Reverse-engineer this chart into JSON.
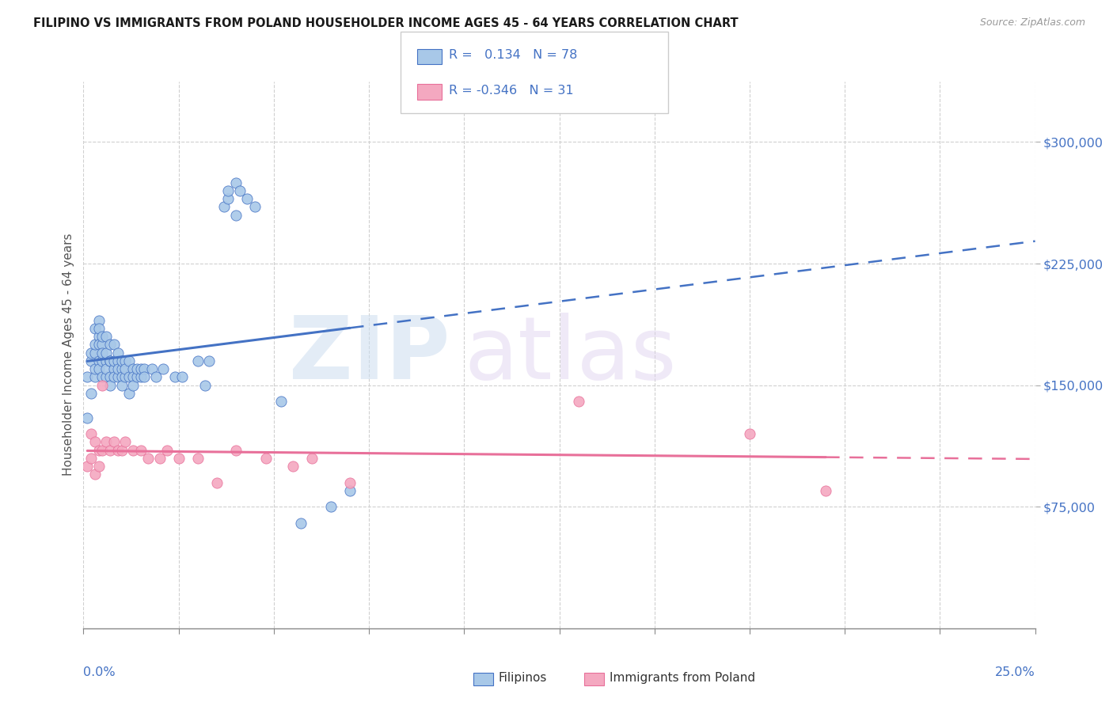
{
  "title": "FILIPINO VS IMMIGRANTS FROM POLAND HOUSEHOLDER INCOME AGES 45 - 64 YEARS CORRELATION CHART",
  "source": "Source: ZipAtlas.com",
  "ylabel": "Householder Income Ages 45 - 64 years",
  "xlim": [
    0.0,
    0.25
  ],
  "ylim": [
    0,
    337500
  ],
  "ytick_labels": [
    "$75,000",
    "$150,000",
    "$225,000",
    "$300,000"
  ],
  "ytick_values": [
    75000,
    150000,
    225000,
    300000
  ],
  "r_filipino": "0.134",
  "n_filipino": 78,
  "r_poland": "-0.346",
  "n_poland": 31,
  "color_filipino": "#a8c8e8",
  "color_poland": "#f4a8c0",
  "line_filipino": "#4472c4",
  "line_poland": "#e8709a",
  "blue_text": "#4472c4",
  "filipino_x": [
    0.001,
    0.001,
    0.002,
    0.002,
    0.002,
    0.003,
    0.003,
    0.003,
    0.003,
    0.003,
    0.004,
    0.004,
    0.004,
    0.004,
    0.004,
    0.004,
    0.005,
    0.005,
    0.005,
    0.005,
    0.005,
    0.006,
    0.006,
    0.006,
    0.006,
    0.006,
    0.007,
    0.007,
    0.007,
    0.007,
    0.007,
    0.008,
    0.008,
    0.008,
    0.008,
    0.009,
    0.009,
    0.009,
    0.009,
    0.01,
    0.01,
    0.01,
    0.01,
    0.011,
    0.011,
    0.011,
    0.012,
    0.012,
    0.012,
    0.013,
    0.013,
    0.013,
    0.014,
    0.014,
    0.015,
    0.015,
    0.016,
    0.016,
    0.018,
    0.019,
    0.021,
    0.024,
    0.026,
    0.03,
    0.032,
    0.033,
    0.037,
    0.038,
    0.038,
    0.04,
    0.04,
    0.041,
    0.043,
    0.045,
    0.052,
    0.057,
    0.065,
    0.07
  ],
  "filipino_y": [
    130000,
    155000,
    145000,
    165000,
    170000,
    155000,
    170000,
    185000,
    160000,
    175000,
    190000,
    180000,
    165000,
    175000,
    185000,
    160000,
    175000,
    165000,
    180000,
    155000,
    170000,
    165000,
    180000,
    155000,
    170000,
    160000,
    165000,
    175000,
    155000,
    165000,
    150000,
    160000,
    175000,
    155000,
    165000,
    165000,
    155000,
    170000,
    160000,
    160000,
    155000,
    165000,
    150000,
    165000,
    155000,
    160000,
    155000,
    165000,
    145000,
    160000,
    155000,
    150000,
    155000,
    160000,
    155000,
    160000,
    160000,
    155000,
    160000,
    155000,
    160000,
    155000,
    155000,
    165000,
    150000,
    165000,
    260000,
    265000,
    270000,
    255000,
    275000,
    270000,
    265000,
    260000,
    140000,
    65000,
    75000,
    85000
  ],
  "poland_x": [
    0.001,
    0.002,
    0.002,
    0.003,
    0.003,
    0.004,
    0.004,
    0.005,
    0.005,
    0.006,
    0.007,
    0.008,
    0.009,
    0.01,
    0.011,
    0.013,
    0.015,
    0.017,
    0.02,
    0.022,
    0.025,
    0.03,
    0.035,
    0.04,
    0.048,
    0.055,
    0.06,
    0.07,
    0.13,
    0.175,
    0.195
  ],
  "poland_y": [
    100000,
    120000,
    105000,
    95000,
    115000,
    110000,
    100000,
    150000,
    110000,
    115000,
    110000,
    115000,
    110000,
    110000,
    115000,
    110000,
    110000,
    105000,
    105000,
    110000,
    105000,
    105000,
    90000,
    110000,
    105000,
    100000,
    105000,
    90000,
    140000,
    120000,
    85000
  ]
}
